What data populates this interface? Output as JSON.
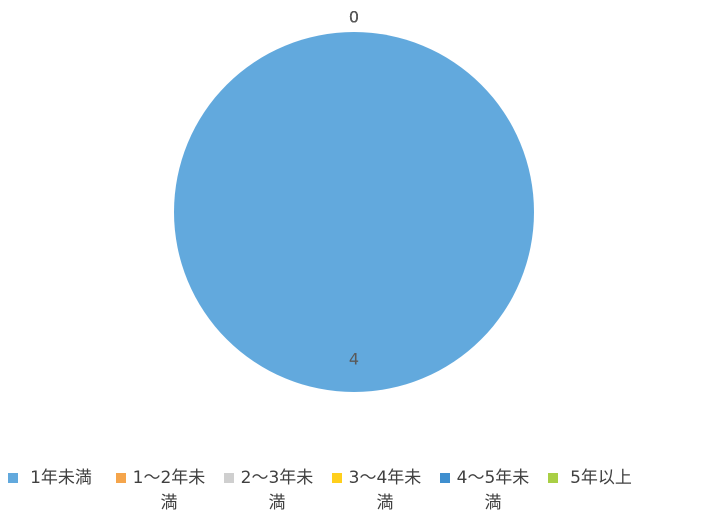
{
  "chart_data": {
    "type": "pie",
    "categories": [
      "1年未満",
      "1～2年未満",
      "2～3年未満",
      "3～4年未満",
      "4～5年未満",
      "5年以上"
    ],
    "values": [
      4,
      0,
      0,
      0,
      0,
      0
    ],
    "colors": [
      "#62a9dd",
      "#f5a54b",
      "#cfcfcf",
      "#ffcf1c",
      "#3f8fcf",
      "#a9cf45"
    ],
    "legend": "bottom"
  }
}
